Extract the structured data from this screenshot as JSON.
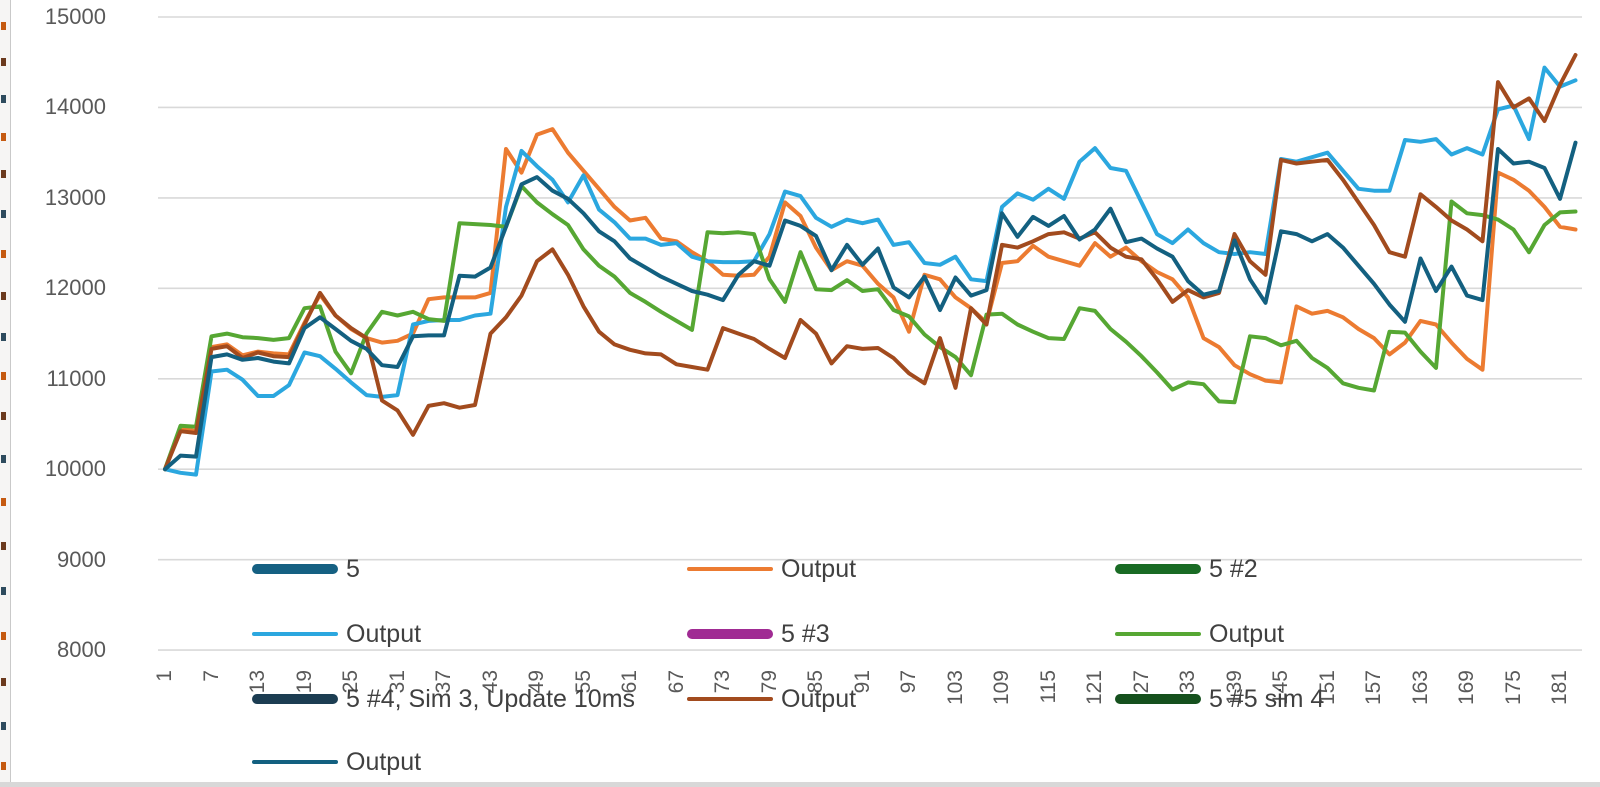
{
  "axes": {
    "y_ticks": [
      15000,
      14000,
      13000,
      12000,
      11000,
      10000,
      9000,
      8000
    ],
    "x_ticks": [
      1,
      7,
      13,
      19,
      25,
      31,
      37,
      43,
      49,
      55,
      61,
      67,
      73,
      79,
      85,
      91,
      97,
      103,
      109,
      115,
      121,
      127,
      133,
      139,
      145,
      151,
      157,
      163,
      169,
      175,
      181
    ],
    "tick_color": "#595959"
  },
  "legend": {
    "text_color": "#404040",
    "items": [
      {
        "label": "5",
        "color": "#156082",
        "thick": true,
        "row": 0,
        "col": 0
      },
      {
        "label": "Output",
        "color": "#EC7B31",
        "thick": false,
        "row": 0,
        "col": 1
      },
      {
        "label": "5 #2",
        "color": "#196B24",
        "thick": true,
        "row": 0,
        "col": 2
      },
      {
        "label": "Output",
        "color": "#2BA7DF",
        "thick": false,
        "row": 1,
        "col": 0
      },
      {
        "label": "5 #3",
        "color": "#A02B93",
        "thick": true,
        "row": 1,
        "col": 1
      },
      {
        "label": "Output",
        "color": "#56A733",
        "thick": false,
        "row": 1,
        "col": 2
      },
      {
        "label": "5 #4, Sim 3, Update 10ms",
        "color": "#1C3D52",
        "thick": true,
        "row": 2,
        "col": 0
      },
      {
        "label": "Output",
        "color": "#A24B1E",
        "thick": false,
        "row": 2,
        "col": 1
      },
      {
        "label": "5 #5 sim 4",
        "color": "#15501D",
        "thick": true,
        "row": 2,
        "col": 2
      },
      {
        "label": "Output",
        "color": "#136080",
        "thick": false,
        "row": 3,
        "col": 0
      }
    ]
  },
  "chart_data": {
    "type": "line",
    "title": "",
    "xlabel": "",
    "ylabel": "",
    "ylim": [
      8000,
      15000
    ],
    "xlim": [
      1,
      183
    ],
    "grid": true,
    "gridline_color": "#D9D9D9",
    "legend_position": "overlay-bottom",
    "x": [
      1,
      3,
      5,
      7,
      9,
      11,
      13,
      15,
      17,
      19,
      21,
      23,
      25,
      27,
      29,
      31,
      33,
      35,
      37,
      39,
      41,
      43,
      45,
      47,
      49,
      51,
      53,
      55,
      57,
      59,
      61,
      63,
      65,
      67,
      69,
      71,
      73,
      75,
      77,
      79,
      81,
      83,
      85,
      87,
      89,
      91,
      93,
      95,
      97,
      99,
      101,
      103,
      105,
      107,
      109,
      111,
      113,
      115,
      117,
      119,
      121,
      123,
      125,
      127,
      129,
      131,
      133,
      135,
      137,
      139,
      141,
      143,
      145,
      147,
      149,
      151,
      153,
      155,
      157,
      159,
      161,
      163,
      165,
      167,
      169,
      171,
      173,
      175,
      177,
      179,
      181,
      183
    ],
    "series": [
      {
        "name": "Output",
        "color": "#EC7B31",
        "values": [
          10000,
          10450,
          10420,
          11350,
          11380,
          11260,
          11300,
          11280,
          11270,
          11620,
          11930,
          11700,
          11550,
          11450,
          11400,
          11420,
          11500,
          11880,
          11900,
          11900,
          11900,
          11950,
          13540,
          13280,
          13700,
          13760,
          13500,
          13300,
          13100,
          12900,
          12750,
          12780,
          12550,
          12520,
          12400,
          12300,
          12150,
          12140,
          12150,
          12350,
          12950,
          12800,
          12450,
          12200,
          12300,
          12250,
          12050,
          11900,
          11520,
          12150,
          12100,
          11900,
          11780,
          11620,
          12280,
          12300,
          12470,
          12350,
          12300,
          12250,
          12500,
          12350,
          12450,
          12300,
          12180,
          12100,
          11900,
          11450,
          11350,
          11150,
          11050,
          10980,
          10960,
          11800,
          11720,
          11750,
          11680,
          11550,
          11450,
          11270,
          11400,
          11640,
          11600,
          11400,
          11220,
          11100,
          13280,
          13200,
          13080,
          12900,
          12680,
          12650
        ]
      },
      {
        "name": "Output",
        "color": "#2BA7DF",
        "values": [
          10000,
          9960,
          9940,
          11080,
          11100,
          10990,
          10810,
          10810,
          10930,
          11290,
          11250,
          11110,
          10960,
          10820,
          10800,
          10820,
          11600,
          11640,
          11650,
          11650,
          11700,
          11720,
          12900,
          13520,
          13350,
          13200,
          12950,
          13250,
          12870,
          12730,
          12550,
          12550,
          12480,
          12500,
          12350,
          12300,
          12290,
          12290,
          12300,
          12600,
          13070,
          13020,
          12780,
          12680,
          12760,
          12720,
          12760,
          12480,
          12510,
          12280,
          12260,
          12350,
          12100,
          12080,
          12900,
          13050,
          12980,
          13100,
          12990,
          13400,
          13550,
          13330,
          13300,
          12950,
          12600,
          12500,
          12650,
          12500,
          12400,
          12380,
          12400,
          12380,
          13430,
          13400,
          13450,
          13500,
          13300,
          13100,
          13080,
          13080,
          13640,
          13620,
          13650,
          13480,
          13550,
          13480,
          13980,
          14020,
          13650,
          14440,
          14230,
          14300
        ]
      },
      {
        "name": "Output",
        "color": "#56A733",
        "values": [
          10000,
          10480,
          10470,
          11470,
          11500,
          11460,
          11450,
          11430,
          11450,
          11780,
          11800,
          11300,
          11060,
          11500,
          11740,
          11700,
          11740,
          11660,
          11640,
          12720,
          12710,
          12700,
          12680,
          13130,
          12950,
          12820,
          12700,
          12430,
          12250,
          12130,
          11950,
          11850,
          11740,
          11640,
          11540,
          12620,
          12610,
          12620,
          12600,
          12100,
          11850,
          12400,
          11990,
          11980,
          12090,
          11970,
          11990,
          11760,
          11690,
          11490,
          11350,
          11240,
          11040,
          11710,
          11720,
          11600,
          11520,
          11450,
          11440,
          11780,
          11750,
          11550,
          11410,
          11250,
          11070,
          10880,
          10960,
          10940,
          10750,
          10740,
          11470,
          11450,
          11370,
          11420,
          11230,
          11120,
          10950,
          10900,
          10870,
          11520,
          11510,
          11300,
          11120,
          12960,
          12830,
          12810,
          12760,
          12650,
          12400,
          12700,
          12840,
          12850
        ]
      },
      {
        "name": "Output",
        "color": "#A24B1E",
        "values": [
          10000,
          10420,
          10400,
          11330,
          11360,
          11230,
          11290,
          11250,
          11240,
          11600,
          11950,
          11700,
          11560,
          11450,
          10760,
          10650,
          10380,
          10700,
          10730,
          10680,
          10710,
          11500,
          11680,
          11920,
          12300,
          12430,
          12150,
          11800,
          11520,
          11380,
          11320,
          11280,
          11270,
          11160,
          11130,
          11100,
          11560,
          11500,
          11440,
          11330,
          11230,
          11650,
          11500,
          11170,
          11360,
          11330,
          11340,
          11230,
          11060,
          10950,
          11450,
          10900,
          11780,
          11600,
          12480,
          12450,
          12520,
          12600,
          12620,
          12550,
          12620,
          12450,
          12350,
          12320,
          12100,
          11850,
          11980,
          11900,
          11950,
          12600,
          12300,
          12150,
          13420,
          13380,
          13400,
          13420,
          13200,
          12950,
          12700,
          12400,
          12350,
          13040,
          12900,
          12750,
          12650,
          12520,
          14280,
          14000,
          14100,
          13850,
          14250,
          14580
        ]
      },
      {
        "name": "Output",
        "color": "#136080",
        "values": [
          10000,
          10150,
          10140,
          11240,
          11270,
          11210,
          11230,
          11190,
          11170,
          11560,
          11680,
          11550,
          11420,
          11330,
          11150,
          11130,
          11470,
          11480,
          11480,
          12140,
          12130,
          12230,
          12680,
          13150,
          13230,
          13080,
          12990,
          12830,
          12630,
          12520,
          12330,
          12230,
          12130,
          12050,
          11970,
          11930,
          11870,
          12150,
          12300,
          12250,
          12750,
          12690,
          12580,
          12200,
          12480,
          12260,
          12440,
          12010,
          11900,
          12130,
          11760,
          12120,
          11920,
          11980,
          12830,
          12570,
          12790,
          12690,
          12800,
          12540,
          12650,
          12880,
          12510,
          12550,
          12440,
          12350,
          12080,
          11930,
          11970,
          12530,
          12100,
          11840,
          12630,
          12600,
          12520,
          12600,
          12450,
          12250,
          12050,
          11820,
          11630,
          12330,
          11970,
          12240,
          11920,
          11870,
          13540,
          13380,
          13400,
          13330,
          12990,
          13610
        ]
      }
    ],
    "hidden_constant_series": [
      {
        "name": "5"
      },
      {
        "name": "5 #2"
      },
      {
        "name": "5 #3"
      },
      {
        "name": "5 #4, Sim 3, Update 10ms"
      },
      {
        "name": "5 #5 sim 4"
      }
    ]
  }
}
